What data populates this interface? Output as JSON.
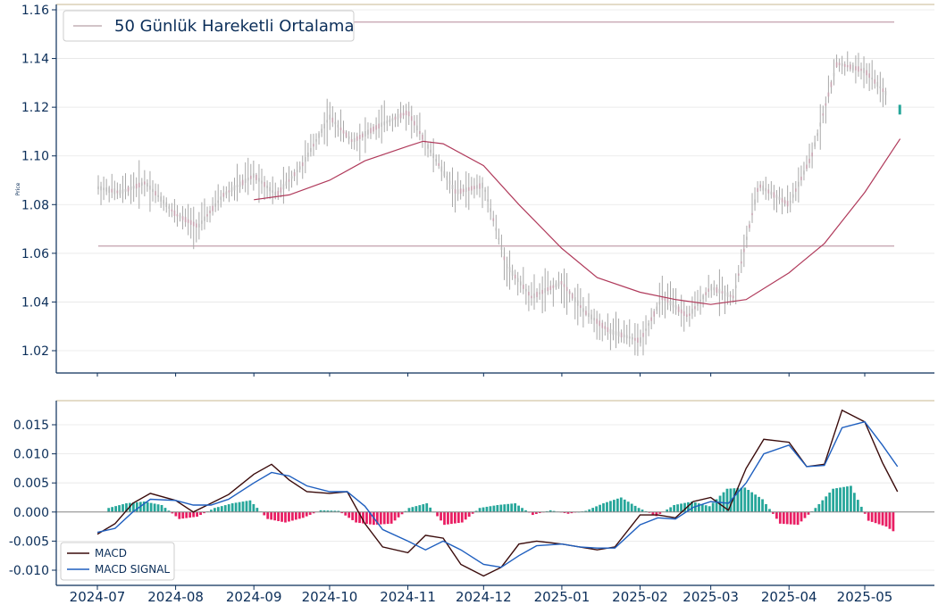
{
  "chart_data": [
    {
      "type": "candlestick",
      "ylabel": "Price",
      "ylim": [
        1.01,
        1.16
      ],
      "yticks": [
        "1.02",
        "1.04",
        "1.06",
        "1.08",
        "1.10",
        "1.12",
        "1.14",
        "1.16"
      ],
      "legend": {
        "placement": "top-left",
        "label": "50 Günlük Hareketli Ortalama"
      },
      "grid": true,
      "hlines": [
        1.155,
        1.063
      ],
      "series": [
        {
          "name": "50 Günlük Hareketli Ortalama",
          "type": "line",
          "color": "#b03a5b",
          "x": [
            "2024-09-01",
            "2024-09-15",
            "2024-10-01",
            "2024-10-15",
            "2024-11-01",
            "2024-11-07",
            "2024-11-15",
            "2024-12-01",
            "2024-12-15",
            "2025-01-01",
            "2025-01-15",
            "2025-02-01",
            "2025-02-15",
            "2025-03-01",
            "2025-03-15",
            "2025-04-01",
            "2025-04-15",
            "2025-05-01",
            "2025-05-15"
          ],
          "values": [
            1.082,
            1.084,
            1.09,
            1.098,
            1.104,
            1.106,
            1.105,
            1.096,
            1.08,
            1.062,
            1.05,
            1.044,
            1.041,
            1.039,
            1.041,
            1.052,
            1.064,
            1.085,
            1.107
          ]
        },
        {
          "name": "close",
          "type": "close-path",
          "color": "#999999",
          "x": [
            "2024-07-01",
            "2024-07-10",
            "2024-07-20",
            "2024-08-01",
            "2024-08-10",
            "2024-08-20",
            "2024-09-01",
            "2024-09-10",
            "2024-09-20",
            "2024-10-01",
            "2024-10-10",
            "2024-10-20",
            "2024-11-01",
            "2024-11-10",
            "2024-11-20",
            "2024-12-01",
            "2024-12-10",
            "2024-12-20",
            "2025-01-01",
            "2025-01-10",
            "2025-01-20",
            "2025-02-01",
            "2025-02-10",
            "2025-02-20",
            "2025-03-01",
            "2025-03-10",
            "2025-03-20",
            "2025-04-01",
            "2025-04-10",
            "2025-04-20",
            "2025-05-01",
            "2025-05-10",
            "2025-05-14"
          ],
          "values": [
            1.087,
            1.085,
            1.089,
            1.076,
            1.071,
            1.084,
            1.092,
            1.084,
            1.096,
            1.116,
            1.106,
            1.112,
            1.118,
            1.102,
            1.085,
            1.088,
            1.055,
            1.042,
            1.048,
            1.036,
            1.028,
            1.024,
            1.042,
            1.034,
            1.046,
            1.042,
            1.088,
            1.08,
            1.1,
            1.138,
            1.135,
            1.125,
            1.118
          ]
        }
      ]
    },
    {
      "type": "line+bar",
      "ylim": [
        -0.012,
        0.019
      ],
      "yticks": [
        "-0.010",
        "-0.005",
        "0.000",
        "0.005",
        "0.010",
        "0.015"
      ],
      "xticks": [
        "2024-07",
        "2024-08",
        "2024-09",
        "2024-10",
        "2024-11",
        "2024-12",
        "2025-01",
        "2025-02",
        "2025-03",
        "2025-04",
        "2025-05"
      ],
      "grid": true,
      "legend": {
        "placement": "bottom-left"
      },
      "series": [
        {
          "name": "MACD",
          "color": "#3a0b0b",
          "x": [
            "2024-07-01",
            "2024-07-08",
            "2024-07-15",
            "2024-07-22",
            "2024-08-01",
            "2024-08-08",
            "2024-08-15",
            "2024-08-22",
            "2024-09-01",
            "2024-09-08",
            "2024-09-15",
            "2024-09-22",
            "2024-10-01",
            "2024-10-08",
            "2024-10-15",
            "2024-10-22",
            "2024-11-01",
            "2024-11-08",
            "2024-11-15",
            "2024-11-22",
            "2024-12-01",
            "2024-12-08",
            "2024-12-15",
            "2024-12-22",
            "2025-01-01",
            "2025-01-08",
            "2025-01-15",
            "2025-01-22",
            "2025-02-01",
            "2025-02-08",
            "2025-02-15",
            "2025-02-22",
            "2025-03-01",
            "2025-03-08",
            "2025-03-15",
            "2025-03-22",
            "2025-04-01",
            "2025-04-08",
            "2025-04-15",
            "2025-04-22",
            "2025-05-01",
            "2025-05-08",
            "2025-05-14"
          ],
          "values": [
            -0.0038,
            -0.002,
            0.0015,
            0.0032,
            0.002,
            0.0,
            0.0015,
            0.003,
            0.0065,
            0.0082,
            0.0055,
            0.0035,
            0.0032,
            0.0035,
            -0.002,
            -0.006,
            -0.007,
            -0.004,
            -0.0045,
            -0.009,
            -0.011,
            -0.0095,
            -0.0055,
            -0.005,
            -0.0055,
            -0.006,
            -0.0065,
            -0.006,
            -0.0005,
            -0.0005,
            -0.001,
            0.0018,
            0.0025,
            0.0003,
            0.0075,
            0.0125,
            0.012,
            0.0078,
            0.0082,
            0.0175,
            0.0155,
            0.0085,
            0.0035
          ]
        },
        {
          "name": "MACD SIGNAL",
          "color": "#1f5fbf",
          "x": [
            "2024-07-01",
            "2024-07-08",
            "2024-07-15",
            "2024-07-22",
            "2024-08-01",
            "2024-08-08",
            "2024-08-15",
            "2024-08-22",
            "2024-09-01",
            "2024-09-08",
            "2024-09-15",
            "2024-09-22",
            "2024-10-01",
            "2024-10-08",
            "2024-10-15",
            "2024-10-22",
            "2024-11-01",
            "2024-11-08",
            "2024-11-15",
            "2024-11-22",
            "2024-12-01",
            "2024-12-08",
            "2024-12-15",
            "2024-12-22",
            "2025-01-01",
            "2025-01-08",
            "2025-01-15",
            "2025-01-22",
            "2025-02-01",
            "2025-02-08",
            "2025-02-15",
            "2025-02-22",
            "2025-03-01",
            "2025-03-08",
            "2025-03-15",
            "2025-03-22",
            "2025-04-01",
            "2025-04-08",
            "2025-04-15",
            "2025-04-22",
            "2025-05-01",
            "2025-05-08",
            "2025-05-14"
          ],
          "values": [
            -0.0035,
            -0.0028,
            0.0,
            0.0022,
            0.002,
            0.0012,
            0.0012,
            0.0022,
            0.005,
            0.0068,
            0.0062,
            0.0045,
            0.0035,
            0.0035,
            0.001,
            -0.003,
            -0.005,
            -0.0065,
            -0.005,
            -0.0065,
            -0.009,
            -0.0095,
            -0.0075,
            -0.0058,
            -0.0055,
            -0.006,
            -0.0062,
            -0.0062,
            -0.0022,
            -0.001,
            -0.0012,
            0.0008,
            0.0018,
            0.0015,
            0.005,
            0.01,
            0.0115,
            0.0078,
            0.008,
            0.0145,
            0.0155,
            0.0115,
            0.0078
          ]
        },
        {
          "name": "histogram",
          "type": "bar",
          "colors": {
            "positive": "#26a69a",
            "negative": "#e91e63"
          },
          "unit": "week",
          "x": [
            "2024-07-05",
            "2024-07-12",
            "2024-07-19",
            "2024-07-26",
            "2024-08-02",
            "2024-08-09",
            "2024-08-16",
            "2024-08-23",
            "2024-08-30",
            "2024-09-06",
            "2024-09-13",
            "2024-09-20",
            "2024-09-27",
            "2024-10-04",
            "2024-10-11",
            "2024-10-18",
            "2024-10-25",
            "2024-11-01",
            "2024-11-08",
            "2024-11-15",
            "2024-11-22",
            "2024-11-29",
            "2024-12-06",
            "2024-12-13",
            "2024-12-20",
            "2024-12-27",
            "2025-01-03",
            "2025-01-10",
            "2025-01-17",
            "2025-01-24",
            "2025-01-31",
            "2025-02-07",
            "2025-02-14",
            "2025-02-21",
            "2025-02-28",
            "2025-03-07",
            "2025-03-14",
            "2025-03-21",
            "2025-03-28",
            "2025-04-04",
            "2025-04-11",
            "2025-04-18",
            "2025-04-25",
            "2025-05-02",
            "2025-05-09",
            "2025-05-14"
          ],
          "values": [
            0.0007,
            0.0015,
            0.0018,
            0.0012,
            -0.0012,
            -0.0008,
            0.0007,
            0.0015,
            0.002,
            -0.0012,
            -0.0018,
            -0.001,
            0.0003,
            0.0002,
            -0.0018,
            -0.0022,
            -0.002,
            0.0007,
            0.0015,
            -0.0022,
            -0.0018,
            0.0007,
            0.0012,
            0.0015,
            -0.0005,
            0.0003,
            -0.0003,
            0.0002,
            0.0015,
            0.0025,
            0.0007,
            -0.0007,
            0.0012,
            0.0018,
            0.001,
            0.004,
            0.0042,
            0.0022,
            -0.002,
            -0.0022,
            0.0007,
            0.004,
            0.0045,
            -0.0015,
            -0.0025,
            -0.0045
          ]
        }
      ]
    }
  ]
}
